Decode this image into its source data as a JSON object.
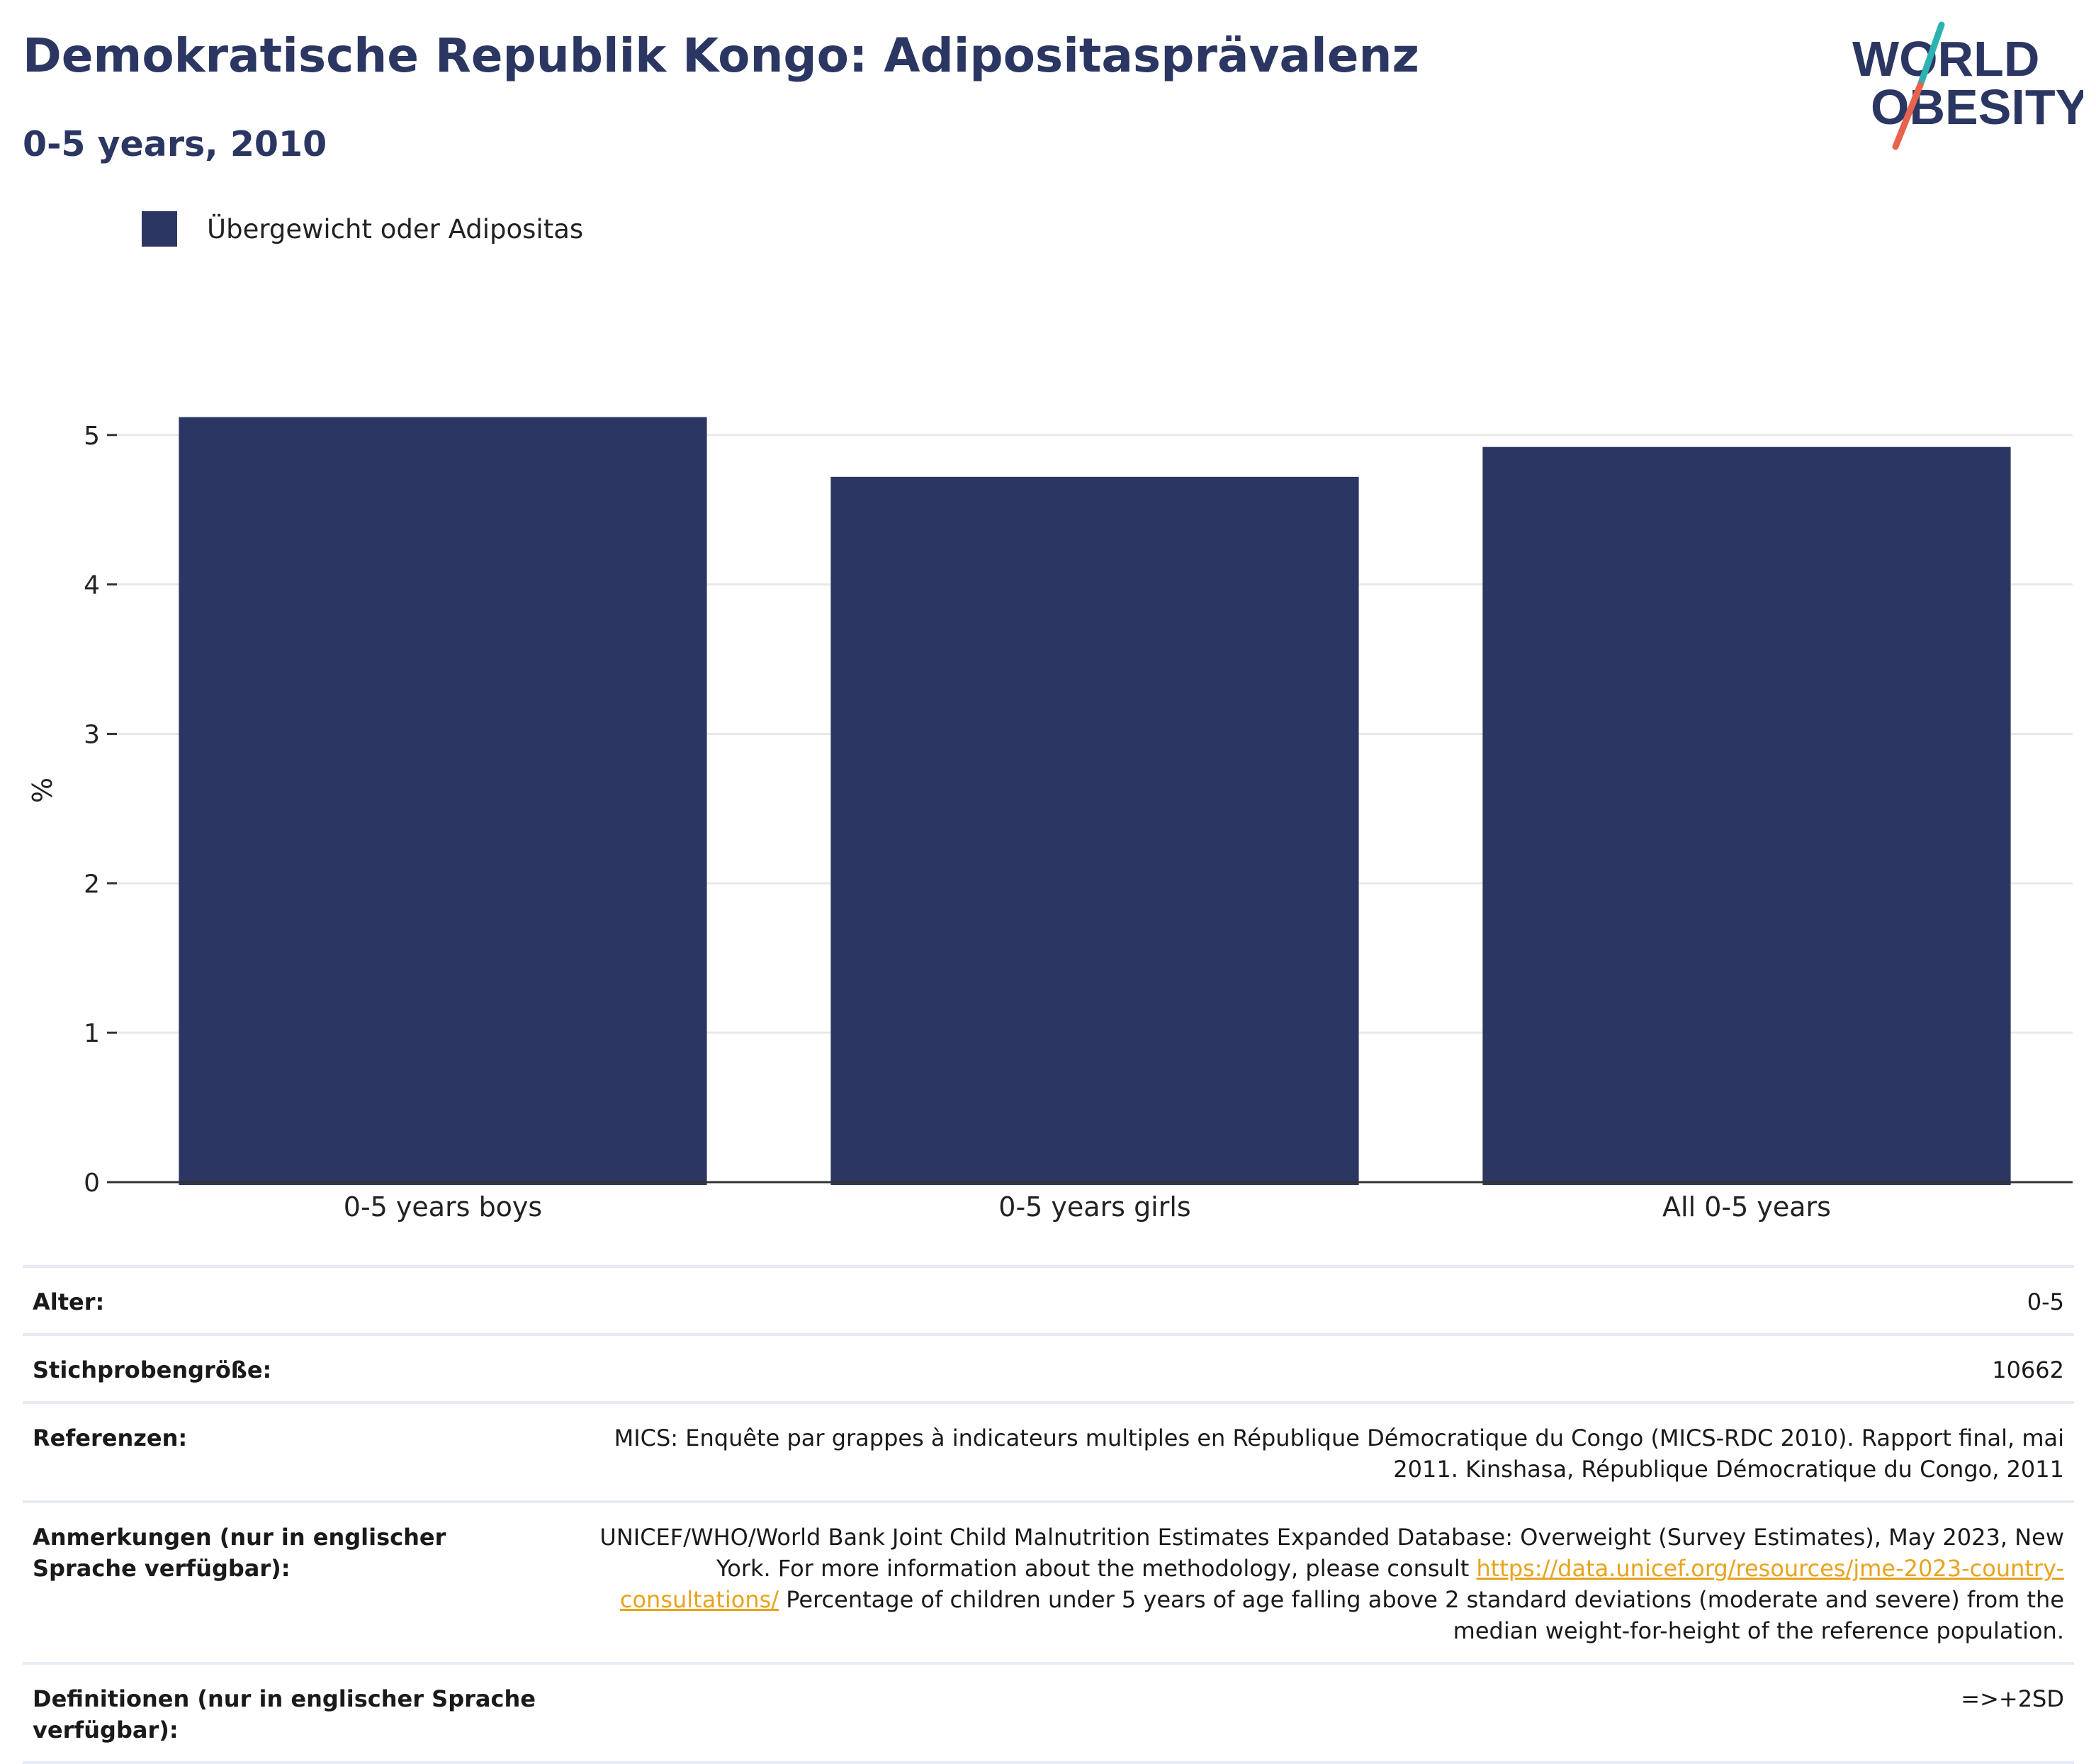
{
  "header": {
    "title": "Demokratische Republik Kongo: Adipositasprävalenz",
    "subtitle": "0-5 years, 2010"
  },
  "logo": {
    "line1": "WORLD",
    "line2": "OBESITY",
    "colors": {
      "text": "#2b3762",
      "slash_top": "#2bb3b1",
      "slash_bottom": "#e8624c"
    }
  },
  "legend": {
    "items": [
      {
        "label": "Übergewicht oder Adipositas",
        "color": "#2b3762"
      }
    ]
  },
  "chart_data": {
    "type": "bar",
    "categories": [
      "0-5 years boys",
      "0-5 years girls",
      "All 0-5 years"
    ],
    "series": [
      {
        "name": "Übergewicht oder Adipositas",
        "values": [
          5.12,
          4.72,
          4.92
        ],
        "color": "#2b3762"
      }
    ],
    "ylabel": "%",
    "ylim": [
      0,
      5.35
    ],
    "yticks": [
      0,
      1,
      2,
      3,
      4,
      5
    ],
    "grid": true,
    "legend_position": "top-left"
  },
  "meta": {
    "rows": [
      {
        "key": "Alter:",
        "value": "0-5"
      },
      {
        "key": "Stichprobengröße:",
        "value": "10662"
      },
      {
        "key": "Referenzen:",
        "value": "MICS: Enquête par grappes à indicateurs multiples en République Démocratique du Congo (MICS-RDC 2010). Rapport final, mai 2011. Kinshasa, République Démocratique du Congo, 2011"
      },
      {
        "key": "Anmerkungen (nur in englischer Sprache verfügbar):",
        "value_before": "UNICEF/WHO/World Bank Joint Child Malnutrition Estimates Expanded Database: Overweight (Survey Estimates), May 2023, New York. For more information about the methodology, please consult ",
        "link": "https://data.unicef.org/resources/jme-2023-country-consultations/",
        "value_after": " Percentage of children under 5 years of age falling above 2 standard deviations (moderate and severe) from the median weight-for-height of the reference population."
      },
      {
        "key": "Definitionen (nur in englischer Sprache verfügbar):",
        "value": "=>+2SD"
      }
    ]
  }
}
